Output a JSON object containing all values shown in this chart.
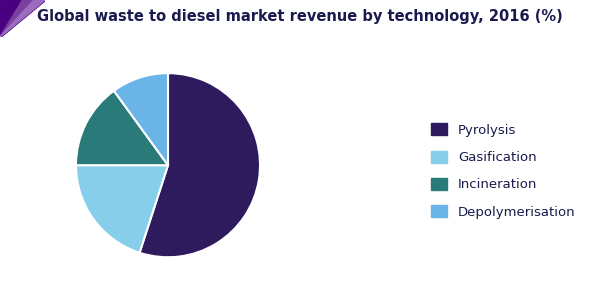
{
  "title": "Global waste to diesel market revenue by technology, 2016 (%)",
  "title_color": "#1a1a4e",
  "title_fontsize": 10.5,
  "slices": [
    {
      "label": "Pyrolysis",
      "value": 55,
      "color": "#2d1b5e"
    },
    {
      "label": "Gasification",
      "value": 20,
      "color": "#87ceeb"
    },
    {
      "label": "Incineration",
      "value": 15,
      "color": "#2a7a7a"
    },
    {
      "label": "Depolymerisation",
      "value": 10,
      "color": "#6ab4e8"
    }
  ],
  "legend_labels_order": [
    "Pyrolysis",
    "Gasification",
    "Incineration",
    "Depolymerisation"
  ],
  "legend_fontsize": 9.5,
  "header_line_color": "#6a0dad",
  "background_color": "#ffffff",
  "startangle": 90,
  "pie_edge_color": "#ffffff",
  "pie_linewidth": 1.5,
  "accent_dark": "#4b0082",
  "accent_mid": "#7b3fa0",
  "accent_light": "#9b6bbf"
}
